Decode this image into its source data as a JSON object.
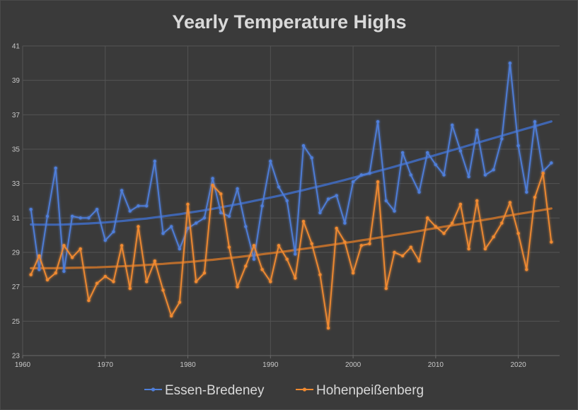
{
  "chart_data": {
    "type": "line",
    "title": "Yearly Temperature Highs",
    "xlabel": "",
    "ylabel": "",
    "xlim": [
      1960,
      2025
    ],
    "ylim": [
      23,
      41
    ],
    "xticks": [
      1960,
      1970,
      1980,
      1990,
      2000,
      2010,
      2020
    ],
    "yticks": [
      23,
      25,
      27,
      29,
      31,
      33,
      35,
      37,
      39,
      41
    ],
    "grid": true,
    "legend_position": "bottom",
    "x": [
      1961,
      1962,
      1963,
      1964,
      1965,
      1966,
      1967,
      1968,
      1969,
      1970,
      1971,
      1972,
      1973,
      1974,
      1975,
      1976,
      1977,
      1978,
      1979,
      1980,
      1981,
      1982,
      1983,
      1984,
      1985,
      1986,
      1987,
      1988,
      1989,
      1990,
      1991,
      1992,
      1993,
      1994,
      1995,
      1996,
      1997,
      1998,
      1999,
      2000,
      2001,
      2002,
      2003,
      2004,
      2005,
      2006,
      2007,
      2008,
      2009,
      2010,
      2011,
      2012,
      2013,
      2014,
      2015,
      2016,
      2017,
      2018,
      2019,
      2020,
      2021,
      2022,
      2023,
      2024
    ],
    "series": [
      {
        "name": "Essen-Bredeney",
        "color": "#4f7ed9",
        "values": [
          31.5,
          28.0,
          31.1,
          33.9,
          27.9,
          31.1,
          31.0,
          31.0,
          31.5,
          29.7,
          30.2,
          32.6,
          31.4,
          31.7,
          31.7,
          34.3,
          30.1,
          30.5,
          29.2,
          30.4,
          30.7,
          31.0,
          33.3,
          31.3,
          31.1,
          32.7,
          30.5,
          28.6,
          31.7,
          34.3,
          32.8,
          32.0,
          28.9,
          35.2,
          34.5,
          31.3,
          32.1,
          32.3,
          30.7,
          33.1,
          33.5,
          33.6,
          36.6,
          32.0,
          31.4,
          34.8,
          33.5,
          32.5,
          34.8,
          34.1,
          33.5,
          36.4,
          34.9,
          33.4,
          36.1,
          33.5,
          33.8,
          35.6,
          40.0,
          35.2,
          32.5,
          36.6,
          33.7,
          34.2
        ],
        "trend": [
          30.62,
          30.61,
          30.61,
          30.61,
          30.62,
          30.64,
          30.66,
          30.68,
          30.71,
          30.74,
          30.78,
          30.82,
          30.87,
          30.92,
          30.97,
          31.03,
          31.09,
          31.16,
          31.22,
          31.3,
          31.37,
          31.45,
          31.53,
          31.62,
          31.71,
          31.8,
          31.89,
          31.99,
          32.09,
          32.19,
          32.29,
          32.4,
          32.51,
          32.62,
          32.74,
          32.85,
          32.97,
          33.09,
          33.21,
          33.34,
          33.46,
          33.59,
          33.72,
          33.85,
          33.98,
          34.12,
          34.25,
          34.39,
          34.52,
          34.66,
          34.8,
          34.94,
          35.08,
          35.22,
          35.36,
          35.5,
          35.64,
          35.78,
          35.92,
          36.06,
          36.2,
          36.33,
          36.47,
          36.61
        ]
      },
      {
        "name": "Hohenpeißenberg",
        "color": "#f08a30",
        "values": [
          27.7,
          28.8,
          27.4,
          27.8,
          29.4,
          28.7,
          29.2,
          26.2,
          27.2,
          27.6,
          27.3,
          29.4,
          26.9,
          30.5,
          27.3,
          28.5,
          26.8,
          25.3,
          26.1,
          31.8,
          27.3,
          27.8,
          32.9,
          32.4,
          29.3,
          27.0,
          28.2,
          29.4,
          28.0,
          27.3,
          29.4,
          28.6,
          27.5,
          30.8,
          29.5,
          27.7,
          24.6,
          30.4,
          29.6,
          27.8,
          29.4,
          29.5,
          33.1,
          26.9,
          29.0,
          28.8,
          29.3,
          28.5,
          31.0,
          30.5,
          30.1,
          30.7,
          31.8,
          29.2,
          32.0,
          29.2,
          29.9,
          30.7,
          31.9,
          30.1,
          28.0,
          32.2,
          33.6,
          29.6
        ],
        "trend": [
          28.08,
          28.08,
          28.08,
          28.08,
          28.09,
          28.1,
          28.11,
          28.12,
          28.13,
          28.15,
          28.17,
          28.19,
          28.21,
          28.24,
          28.27,
          28.3,
          28.33,
          28.37,
          28.4,
          28.44,
          28.48,
          28.53,
          28.57,
          28.62,
          28.67,
          28.72,
          28.78,
          28.83,
          28.89,
          28.95,
          29.01,
          29.07,
          29.14,
          29.2,
          29.27,
          29.34,
          29.41,
          29.48,
          29.55,
          29.62,
          29.7,
          29.77,
          29.85,
          29.93,
          30.01,
          30.08,
          30.16,
          30.24,
          30.33,
          30.41,
          30.49,
          30.57,
          30.65,
          30.74,
          30.82,
          30.9,
          30.98,
          31.07,
          31.15,
          31.23,
          31.31,
          31.39,
          31.47,
          31.55
        ]
      }
    ]
  }
}
